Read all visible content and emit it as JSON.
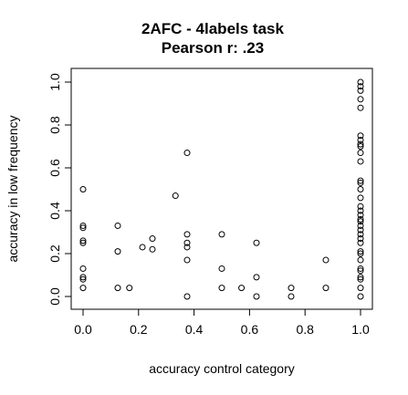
{
  "chart_data": {
    "type": "scatter",
    "title": "2AFC - 4labels task",
    "subtitle": "Pearson r: .23",
    "xlabel": "accuracy control category",
    "ylabel": "accuracy in low frequency",
    "xlim": [
      0,
      1
    ],
    "ylim": [
      0,
      1
    ],
    "grid": false,
    "legend": "none",
    "x_ticks": [
      "0.0",
      "0.2",
      "0.4",
      "0.6",
      "0.8",
      "1.0"
    ],
    "y_ticks": [
      "0.0",
      "0.2",
      "0.4",
      "0.6",
      "0.8",
      "1.0"
    ],
    "points": [
      {
        "x": 0.0,
        "y": 0.5
      },
      {
        "x": 0.0,
        "y": 0.33
      },
      {
        "x": 0.0,
        "y": 0.32
      },
      {
        "x": 0.0,
        "y": 0.26
      },
      {
        "x": 0.0,
        "y": 0.25
      },
      {
        "x": 0.0,
        "y": 0.13
      },
      {
        "x": 0.0,
        "y": 0.09
      },
      {
        "x": 0.0,
        "y": 0.08
      },
      {
        "x": 0.0,
        "y": 0.04
      },
      {
        "x": 0.125,
        "y": 0.33
      },
      {
        "x": 0.125,
        "y": 0.21
      },
      {
        "x": 0.125,
        "y": 0.04
      },
      {
        "x": 0.167,
        "y": 0.04
      },
      {
        "x": 0.214,
        "y": 0.23
      },
      {
        "x": 0.25,
        "y": 0.27
      },
      {
        "x": 0.25,
        "y": 0.22
      },
      {
        "x": 0.333,
        "y": 0.47
      },
      {
        "x": 0.375,
        "y": 0.67
      },
      {
        "x": 0.375,
        "y": 0.29
      },
      {
        "x": 0.375,
        "y": 0.25
      },
      {
        "x": 0.375,
        "y": 0.23
      },
      {
        "x": 0.375,
        "y": 0.17
      },
      {
        "x": 0.375,
        "y": 0.0
      },
      {
        "x": 0.5,
        "y": 0.29
      },
      {
        "x": 0.5,
        "y": 0.13
      },
      {
        "x": 0.5,
        "y": 0.04
      },
      {
        "x": 0.571,
        "y": 0.04
      },
      {
        "x": 0.625,
        "y": 0.25
      },
      {
        "x": 0.625,
        "y": 0.09
      },
      {
        "x": 0.625,
        "y": 0.0
      },
      {
        "x": 0.75,
        "y": 0.04
      },
      {
        "x": 0.75,
        "y": 0.0
      },
      {
        "x": 0.875,
        "y": 0.17
      },
      {
        "x": 0.875,
        "y": 0.04
      },
      {
        "x": 1.0,
        "y": 1.0
      },
      {
        "x": 1.0,
        "y": 0.98
      },
      {
        "x": 1.0,
        "y": 0.96
      },
      {
        "x": 1.0,
        "y": 0.92
      },
      {
        "x": 1.0,
        "y": 0.88
      },
      {
        "x": 1.0,
        "y": 0.75
      },
      {
        "x": 1.0,
        "y": 0.73
      },
      {
        "x": 1.0,
        "y": 0.71
      },
      {
        "x": 1.0,
        "y": 0.7
      },
      {
        "x": 1.0,
        "y": 0.67
      },
      {
        "x": 1.0,
        "y": 0.63
      },
      {
        "x": 1.0,
        "y": 0.54
      },
      {
        "x": 1.0,
        "y": 0.53
      },
      {
        "x": 1.0,
        "y": 0.5
      },
      {
        "x": 1.0,
        "y": 0.46
      },
      {
        "x": 1.0,
        "y": 0.42
      },
      {
        "x": 1.0,
        "y": 0.4
      },
      {
        "x": 1.0,
        "y": 0.38
      },
      {
        "x": 1.0,
        "y": 0.36
      },
      {
        "x": 1.0,
        "y": 0.35
      },
      {
        "x": 1.0,
        "y": 0.33
      },
      {
        "x": 1.0,
        "y": 0.31
      },
      {
        "x": 1.0,
        "y": 0.29
      },
      {
        "x": 1.0,
        "y": 0.27
      },
      {
        "x": 1.0,
        "y": 0.25
      },
      {
        "x": 1.0,
        "y": 0.21
      },
      {
        "x": 1.0,
        "y": 0.2
      },
      {
        "x": 1.0,
        "y": 0.17
      },
      {
        "x": 1.0,
        "y": 0.13
      },
      {
        "x": 1.0,
        "y": 0.12
      },
      {
        "x": 1.0,
        "y": 0.09
      },
      {
        "x": 1.0,
        "y": 0.08
      },
      {
        "x": 1.0,
        "y": 0.04
      },
      {
        "x": 1.0,
        "y": 0.0
      }
    ],
    "colors": {
      "points": "#000000",
      "background": "#ffffff"
    }
  }
}
